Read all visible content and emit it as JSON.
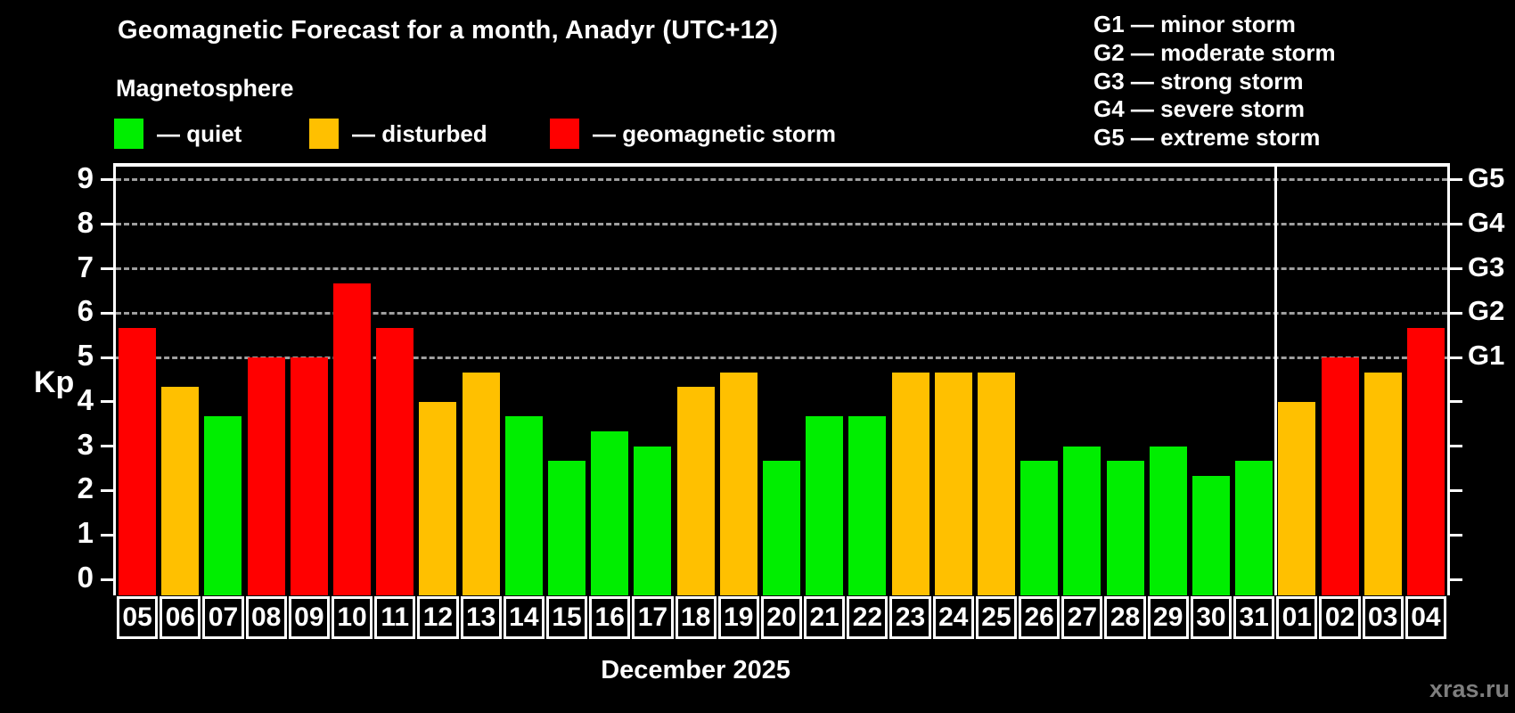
{
  "header": {
    "title": "Geomagnetic Forecast for a month, Anadyr (UTC+12)",
    "subtitle": "Magnetosphere"
  },
  "legend": [
    {
      "key": "quiet",
      "label": "— quiet",
      "color": "#00ee00"
    },
    {
      "key": "disturbed",
      "label": "— disturbed",
      "color": "#ffc000"
    },
    {
      "key": "storm",
      "label": "— geomagnetic storm",
      "color": "#ff0000"
    }
  ],
  "g_legend": [
    "G1 — minor storm",
    "G2 — moderate storm",
    "G3 — strong storm",
    "G4 — severe storm",
    "G5 — extreme storm"
  ],
  "watermark": "xras.ru",
  "chart_data": {
    "type": "bar",
    "title": "Geomagnetic Forecast for a month, Anadyr (UTC+12)",
    "xlabel": "December 2025",
    "ylabel": "Kp",
    "ylim": [
      0,
      9
    ],
    "yticks": [
      0,
      1,
      2,
      3,
      4,
      5,
      6,
      7,
      8,
      9
    ],
    "gridlines_at_kp": [
      5,
      6,
      7,
      8,
      9
    ],
    "grid": "dashed",
    "right_axis": [
      {
        "kp": 5,
        "label": "G1"
      },
      {
        "kp": 6,
        "label": "G2"
      },
      {
        "kp": 7,
        "label": "G3"
      },
      {
        "kp": 8,
        "label": "G4"
      },
      {
        "kp": 9,
        "label": "G5"
      }
    ],
    "categories": [
      "05",
      "06",
      "07",
      "08",
      "09",
      "10",
      "11",
      "12",
      "13",
      "14",
      "15",
      "16",
      "17",
      "18",
      "19",
      "20",
      "21",
      "22",
      "23",
      "24",
      "25",
      "26",
      "27",
      "28",
      "29",
      "30",
      "31",
      "01",
      "02",
      "03",
      "04"
    ],
    "values": [
      5.67,
      4.33,
      3.67,
      5.0,
      5.0,
      6.67,
      5.67,
      4.0,
      4.67,
      3.67,
      2.67,
      3.33,
      3.0,
      4.33,
      4.67,
      2.67,
      3.67,
      3.67,
      4.67,
      4.67,
      4.67,
      2.67,
      3.0,
      2.67,
      3.0,
      2.33,
      2.67,
      4.0,
      5.0,
      4.67,
      5.67
    ],
    "statuses": [
      "storm",
      "disturbed",
      "quiet",
      "storm",
      "storm",
      "storm",
      "storm",
      "disturbed",
      "disturbed",
      "quiet",
      "quiet",
      "quiet",
      "quiet",
      "disturbed",
      "disturbed",
      "quiet",
      "quiet",
      "quiet",
      "disturbed",
      "disturbed",
      "disturbed",
      "quiet",
      "quiet",
      "quiet",
      "quiet",
      "quiet",
      "quiet",
      "disturbed",
      "storm",
      "disturbed",
      "storm"
    ],
    "colors": {
      "quiet": "#00ee00",
      "disturbed": "#ffc000",
      "storm": "#ff0000"
    },
    "month_divider_after_index": 26,
    "legend_position": "top-left"
  }
}
